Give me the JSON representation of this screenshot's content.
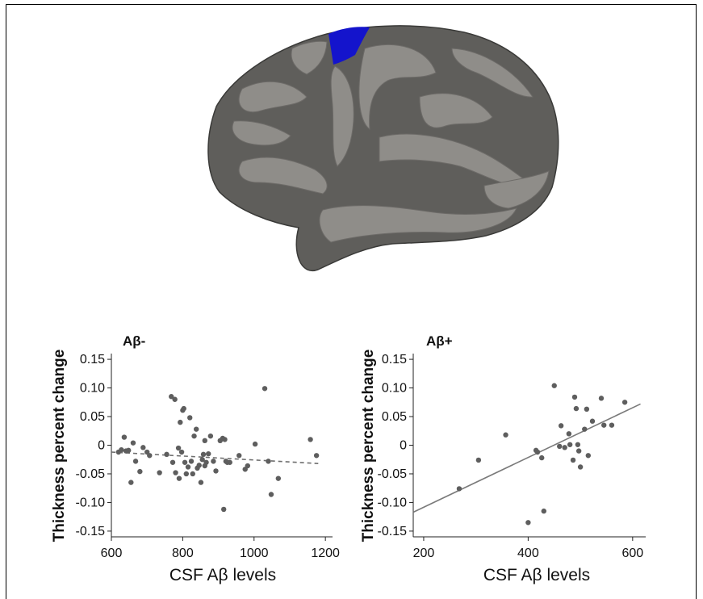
{
  "figure": {
    "brain_image": {
      "description_icon": "brain-surface-icon",
      "cortex_color": "#5f5e5b",
      "gyri_color": "#8f8d89",
      "highlight_color": "#1414cc"
    }
  },
  "chart_data": [
    {
      "type": "scatter",
      "title": "Aβ-",
      "xlabel": "CSF Aβ levels",
      "ylabel": "Thickness percent change",
      "xlim": [
        600,
        1220
      ],
      "ylim": [
        -0.16,
        0.16
      ],
      "xticks": [
        "600",
        "800",
        "1000",
        "1200"
      ],
      "xtick_values": [
        600,
        800,
        1000,
        1200
      ],
      "yticks": [
        "0.15",
        "0.10",
        "0.05",
        "0",
        "-0.05",
        "-0.10",
        "-0.15"
      ],
      "ytick_values": [
        0.15,
        0.1,
        0.05,
        0,
        -0.05,
        -0.1,
        -0.15
      ],
      "point_color": "#5e5e5e",
      "fit_line": {
        "style": "dashed",
        "color": "#6e6e6e",
        "x": [
          600,
          1180
        ],
        "y": [
          -0.012,
          -0.032
        ]
      },
      "points": [
        [
          620,
          -0.012
        ],
        [
          628,
          -0.008
        ],
        [
          636,
          0.014
        ],
        [
          641,
          -0.01
        ],
        [
          648,
          -0.009
        ],
        [
          655,
          -0.065
        ],
        [
          661,
          0.004
        ],
        [
          668,
          -0.028
        ],
        [
          680,
          -0.046
        ],
        [
          689,
          -0.004
        ],
        [
          700,
          -0.012
        ],
        [
          707,
          -0.018
        ],
        [
          735,
          -0.048
        ],
        [
          755,
          -0.016
        ],
        [
          768,
          0.085
        ],
        [
          772,
          -0.03
        ],
        [
          778,
          0.08
        ],
        [
          780,
          -0.048
        ],
        [
          788,
          -0.005
        ],
        [
          790,
          -0.058
        ],
        [
          793,
          0.04
        ],
        [
          797,
          -0.012
        ],
        [
          800,
          0.061
        ],
        [
          803,
          0.064
        ],
        [
          806,
          -0.03
        ],
        [
          810,
          -0.05
        ],
        [
          815,
          -0.038
        ],
        [
          820,
          0.048
        ],
        [
          824,
          -0.028
        ],
        [
          828,
          -0.05
        ],
        [
          832,
          0.016
        ],
        [
          838,
          0.028
        ],
        [
          841,
          -0.04
        ],
        [
          846,
          -0.035
        ],
        [
          851,
          -0.065
        ],
        [
          855,
          -0.025
        ],
        [
          858,
          -0.016
        ],
        [
          862,
          0.008
        ],
        [
          866,
          -0.03
        ],
        [
          872,
          -0.015
        ],
        [
          878,
          0.016
        ],
        [
          886,
          -0.028
        ],
        [
          893,
          -0.045
        ],
        [
          905,
          0.008
        ],
        [
          912,
          0.012
        ],
        [
          915,
          -0.112
        ],
        [
          918,
          0.01
        ],
        [
          921,
          -0.028
        ],
        [
          932,
          -0.03
        ],
        [
          958,
          -0.018
        ],
        [
          975,
          -0.042
        ],
        [
          982,
          -0.036
        ],
        [
          1003,
          0.002
        ],
        [
          1030,
          0.099
        ],
        [
          1040,
          -0.028
        ],
        [
          1048,
          -0.086
        ],
        [
          1068,
          -0.058
        ],
        [
          1158,
          0.01
        ],
        [
          1175,
          -0.018
        ],
        [
          925,
          -0.03
        ],
        [
          862,
          -0.036
        ]
      ]
    },
    {
      "type": "scatter",
      "title": "Aβ+",
      "xlabel": "CSF Aβ levels",
      "ylabel": "Thickness percent change",
      "xlim": [
        180,
        625
      ],
      "ylim": [
        -0.16,
        0.16
      ],
      "xticks": [
        "200",
        "400",
        "600"
      ],
      "xtick_values": [
        200,
        400,
        600
      ],
      "yticks": [
        "0.15",
        "0.10",
        "0.05",
        "0",
        "-0.05",
        "-0.10",
        "-0.15"
      ],
      "ytick_values": [
        0.15,
        0.1,
        0.05,
        0,
        -0.05,
        -0.1,
        -0.15
      ],
      "point_color": "#5e5e5e",
      "fit_line": {
        "style": "solid",
        "color": "#7a7a7a",
        "x": [
          180,
          615
        ],
        "y": [
          -0.117,
          0.072
        ]
      },
      "points": [
        [
          268,
          -0.076
        ],
        [
          305,
          -0.026
        ],
        [
          357,
          0.018
        ],
        [
          400,
          -0.135
        ],
        [
          415,
          -0.009
        ],
        [
          418,
          -0.012
        ],
        [
          426,
          -0.022
        ],
        [
          430,
          -0.115
        ],
        [
          450,
          0.104
        ],
        [
          460,
          -0.002
        ],
        [
          463,
          0.034
        ],
        [
          478,
          0.02
        ],
        [
          480,
          0.001
        ],
        [
          486,
          -0.026
        ],
        [
          489,
          0.084
        ],
        [
          492,
          0.064
        ],
        [
          495,
          0.001
        ],
        [
          500,
          -0.038
        ],
        [
          508,
          0.028
        ],
        [
          512,
          0.063
        ],
        [
          515,
          -0.018
        ],
        [
          523,
          0.042
        ],
        [
          540,
          0.082
        ],
        [
          545,
          0.035
        ],
        [
          560,
          0.035
        ],
        [
          585,
          0.075
        ],
        [
          497,
          -0.01
        ],
        [
          470,
          -0.004
        ]
      ]
    }
  ]
}
